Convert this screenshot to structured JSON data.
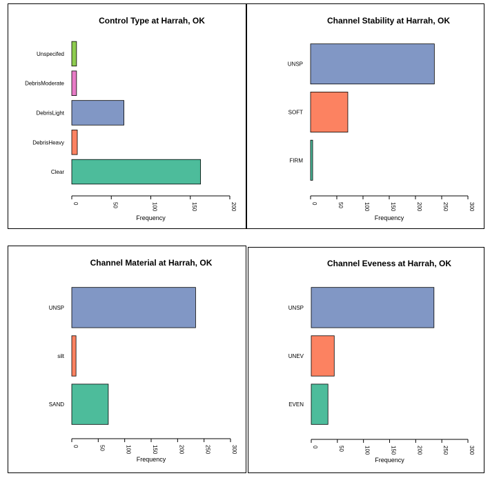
{
  "chart_data": [
    {
      "type": "bar",
      "orientation": "horizontal",
      "title": "Control Type at Harrah, OK",
      "categories": [
        "Clear",
        "DebrisHeavy",
        "DebrisLight",
        "DebrisModerate",
        "Unspecifed"
      ],
      "values": [
        163,
        7,
        66,
        6,
        6
      ],
      "colors": [
        "#4dbc9b",
        "#fc8261",
        "#8197c5",
        "#e77bc6",
        "#8ecc4f"
      ],
      "xlabel": "Frequency",
      "xlim": [
        0,
        200
      ],
      "xticks": [
        0,
        50,
        100,
        150,
        200
      ]
    },
    {
      "type": "bar",
      "orientation": "horizontal",
      "title": "Channel Stability at Harrah, OK",
      "categories": [
        "FIRM",
        "SOFT",
        "UNSP"
      ],
      "values": [
        4,
        71,
        236
      ],
      "colors": [
        "#4dbc9b",
        "#fc8261",
        "#8197c5"
      ],
      "xlabel": "Frequency",
      "xlim": [
        0,
        300
      ],
      "xticks": [
        0,
        50,
        100,
        150,
        200,
        250,
        300
      ]
    },
    {
      "type": "bar",
      "orientation": "horizontal",
      "title": "Channel Material at Harrah, OK",
      "categories": [
        "SAND",
        "silt",
        "UNSP"
      ],
      "values": [
        69,
        8,
        234
      ],
      "colors": [
        "#4dbc9b",
        "#fc8261",
        "#8197c5"
      ],
      "xlabel": "Frequency",
      "xlim": [
        0,
        300
      ],
      "xticks": [
        0,
        50,
        100,
        150,
        200,
        250,
        300
      ]
    },
    {
      "type": "bar",
      "orientation": "horizontal",
      "title": "Channel Eveness at Harrah, OK",
      "categories": [
        "EVEN",
        "UNEV",
        "UNSP"
      ],
      "values": [
        32,
        44,
        235
      ],
      "colors": [
        "#4dbc9b",
        "#fc8261",
        "#8197c5"
      ],
      "xlabel": "Frequency",
      "xlim": [
        0,
        300
      ],
      "xticks": [
        0,
        50,
        100,
        150,
        200,
        250,
        300
      ]
    }
  ]
}
